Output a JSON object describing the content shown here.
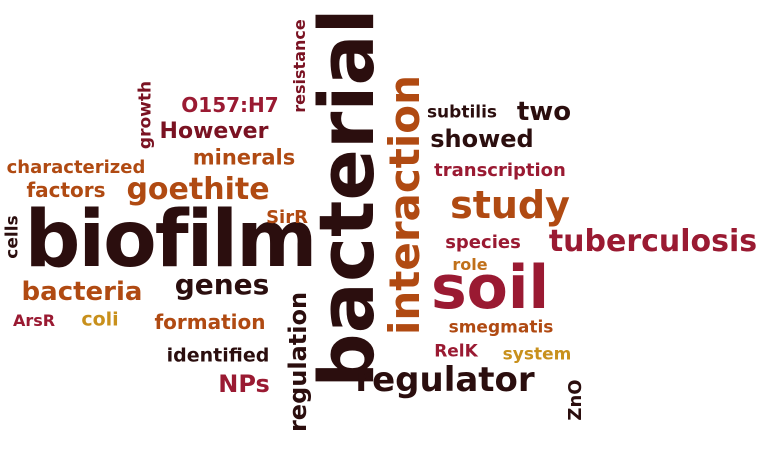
{
  "palette": {
    "dark": "#2b0e0e",
    "maroon": "#7a1222",
    "crimson": "#9a1a32",
    "brown": "#8b2a14",
    "rust": "#b04a12",
    "orange": "#c0701a",
    "gold": "#c8901c"
  },
  "words": [
    {
      "key": "biofilm",
      "text": "biofilm"
    },
    {
      "key": "bacterial",
      "text": "bacterial"
    },
    {
      "key": "interaction",
      "text": "interaction"
    },
    {
      "key": "soil",
      "text": "soil"
    },
    {
      "key": "regulator",
      "text": "regulator"
    },
    {
      "key": "tuberculosis",
      "text": "tuberculosis"
    },
    {
      "key": "study",
      "text": "study"
    },
    {
      "key": "goethite",
      "text": "goethite"
    },
    {
      "key": "bacteria",
      "text": "bacteria"
    },
    {
      "key": "genes",
      "text": "genes"
    },
    {
      "key": "regulation",
      "text": "regulation"
    },
    {
      "key": "formation",
      "text": "formation"
    },
    {
      "key": "NPs",
      "text": "NPs"
    },
    {
      "key": "identified",
      "text": "identified"
    },
    {
      "key": "minerals",
      "text": "minerals"
    },
    {
      "key": "However",
      "text": "However"
    },
    {
      "key": "O157H7",
      "text": "O157:H7"
    },
    {
      "key": "characterized",
      "text": "characterized"
    },
    {
      "key": "factors",
      "text": "factors"
    },
    {
      "key": "growth",
      "text": "growth"
    },
    {
      "key": "resistance",
      "text": "resistance"
    },
    {
      "key": "cells",
      "text": "cells"
    },
    {
      "key": "SirR",
      "text": "SirR"
    },
    {
      "key": "ArsR",
      "text": "ArsR"
    },
    {
      "key": "coli",
      "text": "coli"
    },
    {
      "key": "subtilis",
      "text": "subtilis"
    },
    {
      "key": "two",
      "text": "two"
    },
    {
      "key": "showed",
      "text": "showed"
    },
    {
      "key": "transcription",
      "text": "transcription"
    },
    {
      "key": "species",
      "text": "species"
    },
    {
      "key": "role",
      "text": "role"
    },
    {
      "key": "smegmatis",
      "text": "smegmatis"
    },
    {
      "key": "RelK",
      "text": "RelK"
    },
    {
      "key": "system",
      "text": "system"
    },
    {
      "key": "ZnO",
      "text": "ZnO"
    }
  ]
}
